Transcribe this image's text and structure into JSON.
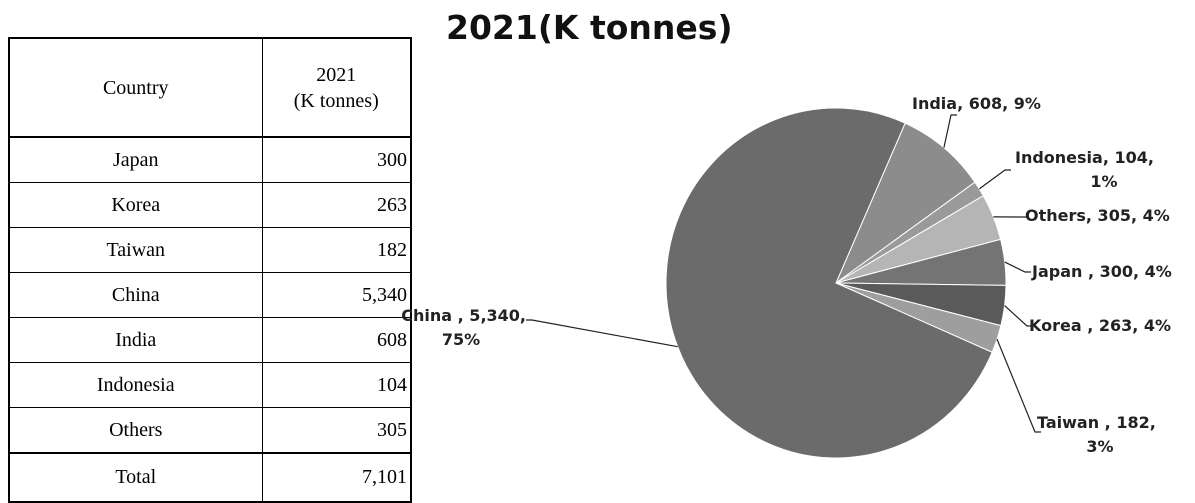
{
  "table": {
    "header_country": "Country",
    "header_value_line1": "2021",
    "header_value_line2": "(K tonnes)",
    "rows": [
      {
        "country": "Japan",
        "value": "300"
      },
      {
        "country": "Korea",
        "value": "263"
      },
      {
        "country": "Taiwan",
        "value": "182"
      },
      {
        "country": "China",
        "value": "5,340"
      },
      {
        "country": "India",
        "value": "608"
      },
      {
        "country": "Indonesia",
        "value": "104"
      },
      {
        "country": "Others",
        "value": "305"
      }
    ],
    "total_label": "Total",
    "total_value": "7,101"
  },
  "chart_data": {
    "type": "pie",
    "title": "2021(K tonnes)",
    "slices": [
      {
        "label": "India",
        "value": 608,
        "percent": "9%",
        "display": [
          "India, 608, 9%"
        ],
        "color": "#8c8c8c"
      },
      {
        "label": "Indonesia",
        "value": 104,
        "percent": "1%",
        "display": [
          "Indonesia, 104,",
          "1%"
        ],
        "color": "#9a9a9a"
      },
      {
        "label": "Others",
        "value": 305,
        "percent": "4%",
        "display": [
          "Others, 305, 4%"
        ],
        "color": "#b5b5b5"
      },
      {
        "label": "Japan",
        "value": 300,
        "percent": "4%",
        "display": [
          "Japan , 300, 4%"
        ],
        "color": "#747474"
      },
      {
        "label": "Korea",
        "value": 263,
        "percent": "4%",
        "display": [
          "Korea , 263, 4%"
        ],
        "color": "#5a5a5a"
      },
      {
        "label": "Taiwan",
        "value": 182,
        "percent": "3%",
        "display": [
          "Taiwan , 182,",
          "3%"
        ],
        "color": "#9e9e9e"
      },
      {
        "label": "China",
        "value": 5340,
        "percent": "75%",
        "display": [
          "China , 5,340,",
          "75%"
        ],
        "color": "#6b6b6b"
      }
    ],
    "legend": "none"
  }
}
